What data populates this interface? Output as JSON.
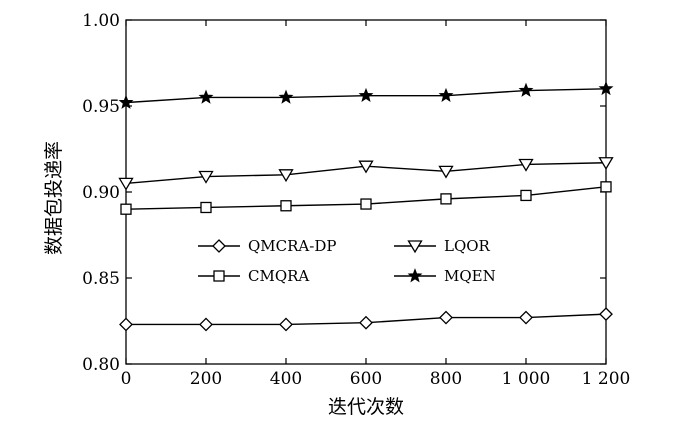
{
  "chart_data": {
    "type": "line",
    "xlabel": "迭代次数",
    "ylabel": "数据包投递率",
    "xlim": [
      0,
      1200
    ],
    "ylim": [
      0.8,
      1.0
    ],
    "x_ticks": [
      0,
      200,
      400,
      600,
      800,
      1000,
      1200
    ],
    "x_tick_labels": [
      "0",
      "200",
      "400",
      "600",
      "800",
      "1 000",
      "1 200"
    ],
    "y_ticks": [
      0.8,
      0.85,
      0.9,
      0.95,
      1.0
    ],
    "y_tick_labels": [
      "0.80",
      "0.85",
      "0.90",
      "0.95",
      "1.00"
    ],
    "grid": false,
    "legend_position": "center-left",
    "x": [
      0,
      200,
      400,
      600,
      800,
      1000,
      1200
    ],
    "series": [
      {
        "name": "QMCRA-DP",
        "marker": "diamond",
        "values": [
          0.823,
          0.823,
          0.823,
          0.824,
          0.827,
          0.827,
          0.829
        ]
      },
      {
        "name": "LQOR",
        "marker": "triangle-down",
        "values": [
          0.905,
          0.909,
          0.91,
          0.915,
          0.912,
          0.916,
          0.917
        ]
      },
      {
        "name": "CMQRA",
        "marker": "square",
        "values": [
          0.89,
          0.891,
          0.892,
          0.893,
          0.896,
          0.898,
          0.903
        ]
      },
      {
        "name": "MQEN",
        "marker": "star",
        "values": [
          0.952,
          0.955,
          0.955,
          0.956,
          0.956,
          0.959,
          0.96
        ]
      }
    ]
  }
}
